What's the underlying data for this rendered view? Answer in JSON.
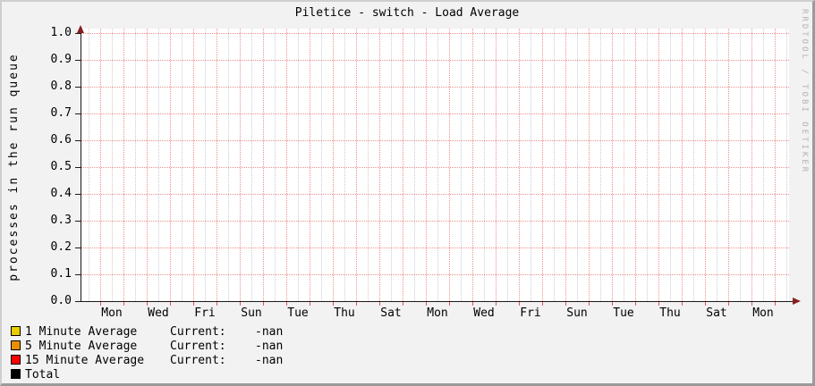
{
  "watermark": "RRDTOOL / TOBI OETIKER",
  "colors": {
    "background": "#f2f2f2",
    "plot_canvas": "#ffffff",
    "grid_major": "#f08f8f",
    "grid_minor": "#cccccc",
    "axis": "#1a1a1a",
    "axis_arrow": "#871e1e",
    "watermark_text": "#b2b2b2",
    "series_1min": "#EACC00",
    "series_5min": "#EA8F00",
    "series_15min": "#FF0000",
    "series_total": "#000000"
  },
  "chart_data": {
    "type": "line",
    "title": "Piletice - switch - Load Average",
    "xlabel": "",
    "ylabel": "processes in the run queue",
    "ylim": [
      0.0,
      1.0
    ],
    "y_tick_step": 0.1,
    "y_tick_labels": [
      "1.0",
      "0.9",
      "0.8",
      "0.7",
      "0.6",
      "0.5",
      "0.4",
      "0.3",
      "0.2",
      "0.1",
      "0.0"
    ],
    "x_tick_labels": [
      "Mon",
      "Wed",
      "Fri",
      "Sun",
      "Tue",
      "Thu",
      "Sat",
      "Mon",
      "Wed",
      "Fri",
      "Sun",
      "Tue",
      "Thu",
      "Sat",
      "Mon"
    ],
    "x_label_interval_days": 2,
    "grid": {
      "horizontal_major": "every 0.1, red dotted",
      "vertical_major": "every 1 day, red dotted",
      "vertical_minor": "every 12 hours, gray dotted",
      "grid_on": true
    },
    "legend_position": "bottom-left",
    "series": [
      {
        "name": "1 Minute Average",
        "color": "#EACC00",
        "current": "-nan",
        "values": []
      },
      {
        "name": "5 Minute Average",
        "color": "#EA8F00",
        "current": "-nan",
        "values": []
      },
      {
        "name": "15 Minute Average",
        "color": "#FF0000",
        "current": "-nan",
        "values": []
      },
      {
        "name": "Total",
        "color": "#000000",
        "current": null,
        "values": []
      }
    ]
  },
  "legend": {
    "current_label": "Current:"
  }
}
